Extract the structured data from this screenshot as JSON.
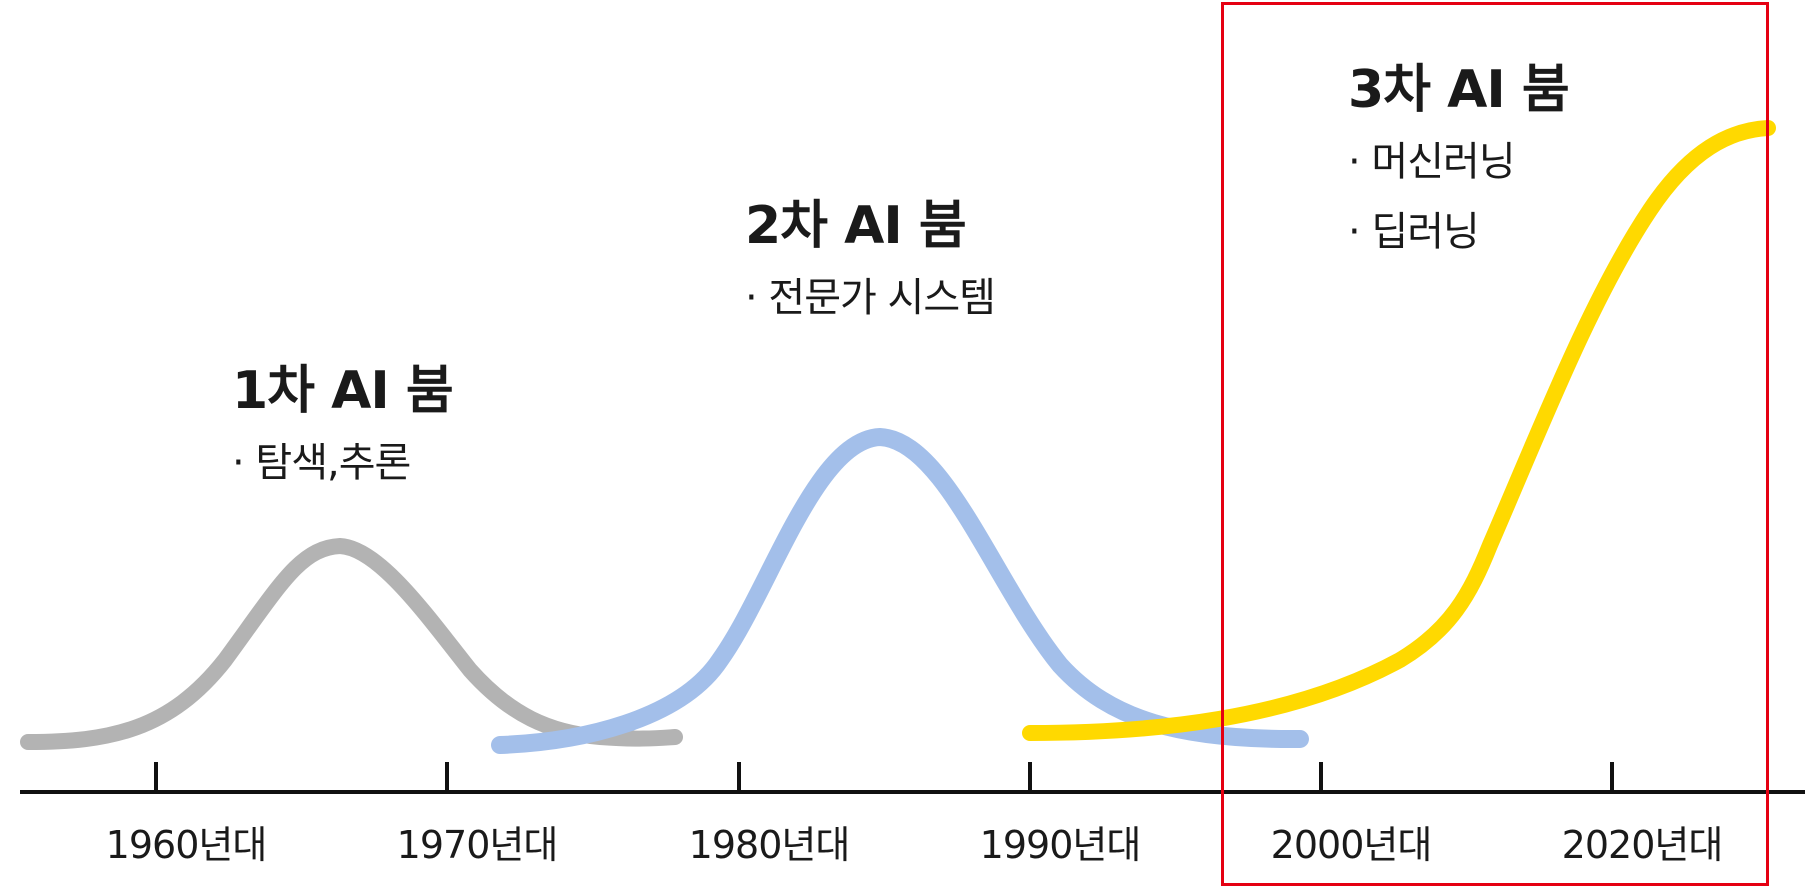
{
  "booms": [
    {
      "title": "1차 AI 붐",
      "items": [
        "· 탐색,추론"
      ]
    },
    {
      "title": "2차 AI 붐",
      "items": [
        "· 전문가 시스템"
      ]
    },
    {
      "title": "3차 AI 붐",
      "items": [
        "· 머신러닝",
        "· 딥러닝"
      ]
    }
  ],
  "axis": {
    "ticks": [
      "1960년대",
      "1970년대",
      "1980년대",
      "1990년대",
      "2000년대",
      "2020년대"
    ]
  },
  "colors": {
    "boom1": "#b3b3b3",
    "boom2": "#a3bfea",
    "boom3": "#ffd900",
    "axis": "#111111",
    "highlight": "#e50012"
  },
  "highlight": {
    "region": "2000년대–2020년대",
    "color": "#e50012"
  }
}
